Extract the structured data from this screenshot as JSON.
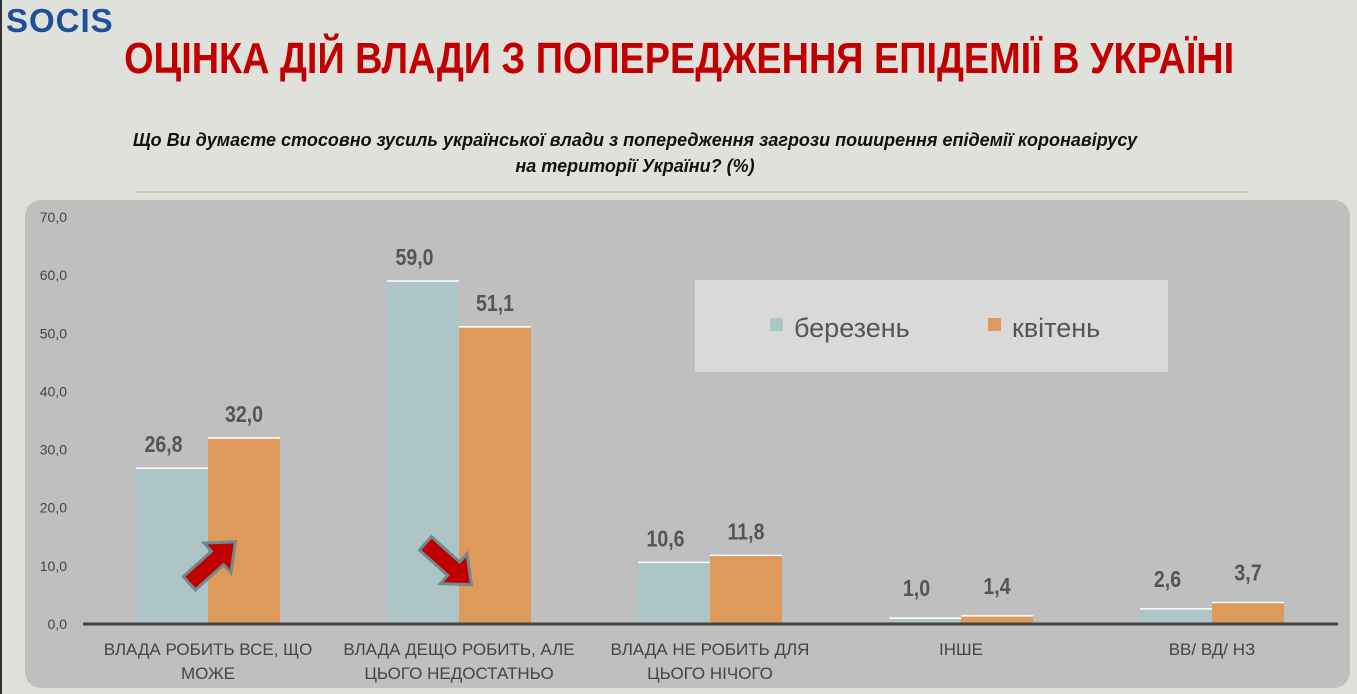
{
  "logo": "SOCIS",
  "title": "ОЦІНКА ДІЙ ВЛАДИ З ПОПЕРЕДЖЕННЯ ЕПІДЕМІЇ В УКРАЇНІ",
  "question": "Що Ви думаєте стосовно зусиль української влади з попередження загрози поширення епідемії коронавірусу на території України? (%)",
  "chart_data": {
    "type": "bar",
    "categories": [
      [
        "ВЛАДА РОБИТЬ ВСЕ, ЩО",
        "МОЖЕ"
      ],
      [
        "ВЛАДА ДЕЩО РОБИТЬ, АЛЕ",
        "ЦЬОГО НЕДОСТАТНЬО"
      ],
      [
        "ВЛАДА НЕ РОБИТЬ ДЛЯ",
        "ЦЬОГО НІЧОГО"
      ],
      [
        "ІНШЕ"
      ],
      [
        "ВВ/ ВД/ НЗ"
      ]
    ],
    "series": [
      {
        "name": "березень",
        "color": "#aec5c7",
        "values": [
          26.8,
          59.0,
          10.6,
          1.0,
          2.6
        ],
        "labels": [
          "26,8",
          "59,0",
          "10,6",
          "1,0",
          "2,6"
        ]
      },
      {
        "name": "квітень",
        "color": "#dd9a5b",
        "values": [
          32.0,
          51.1,
          11.8,
          1.4,
          3.7
        ],
        "labels": [
          "32,0",
          "51,1",
          "11,8",
          "1,4",
          "3,7"
        ]
      }
    ],
    "yticks": [
      "0,0",
      "10,0",
      "20,0",
      "30,0",
      "40,0",
      "50,0",
      "60,0",
      "70,0"
    ],
    "ylim": [
      0,
      70
    ],
    "legend_position": "top-right",
    "grid": false,
    "annotations": [
      {
        "type": "arrow-up",
        "category": 0
      },
      {
        "type": "arrow-down",
        "category": 1
      }
    ],
    "arrow_color": "#c00000"
  }
}
